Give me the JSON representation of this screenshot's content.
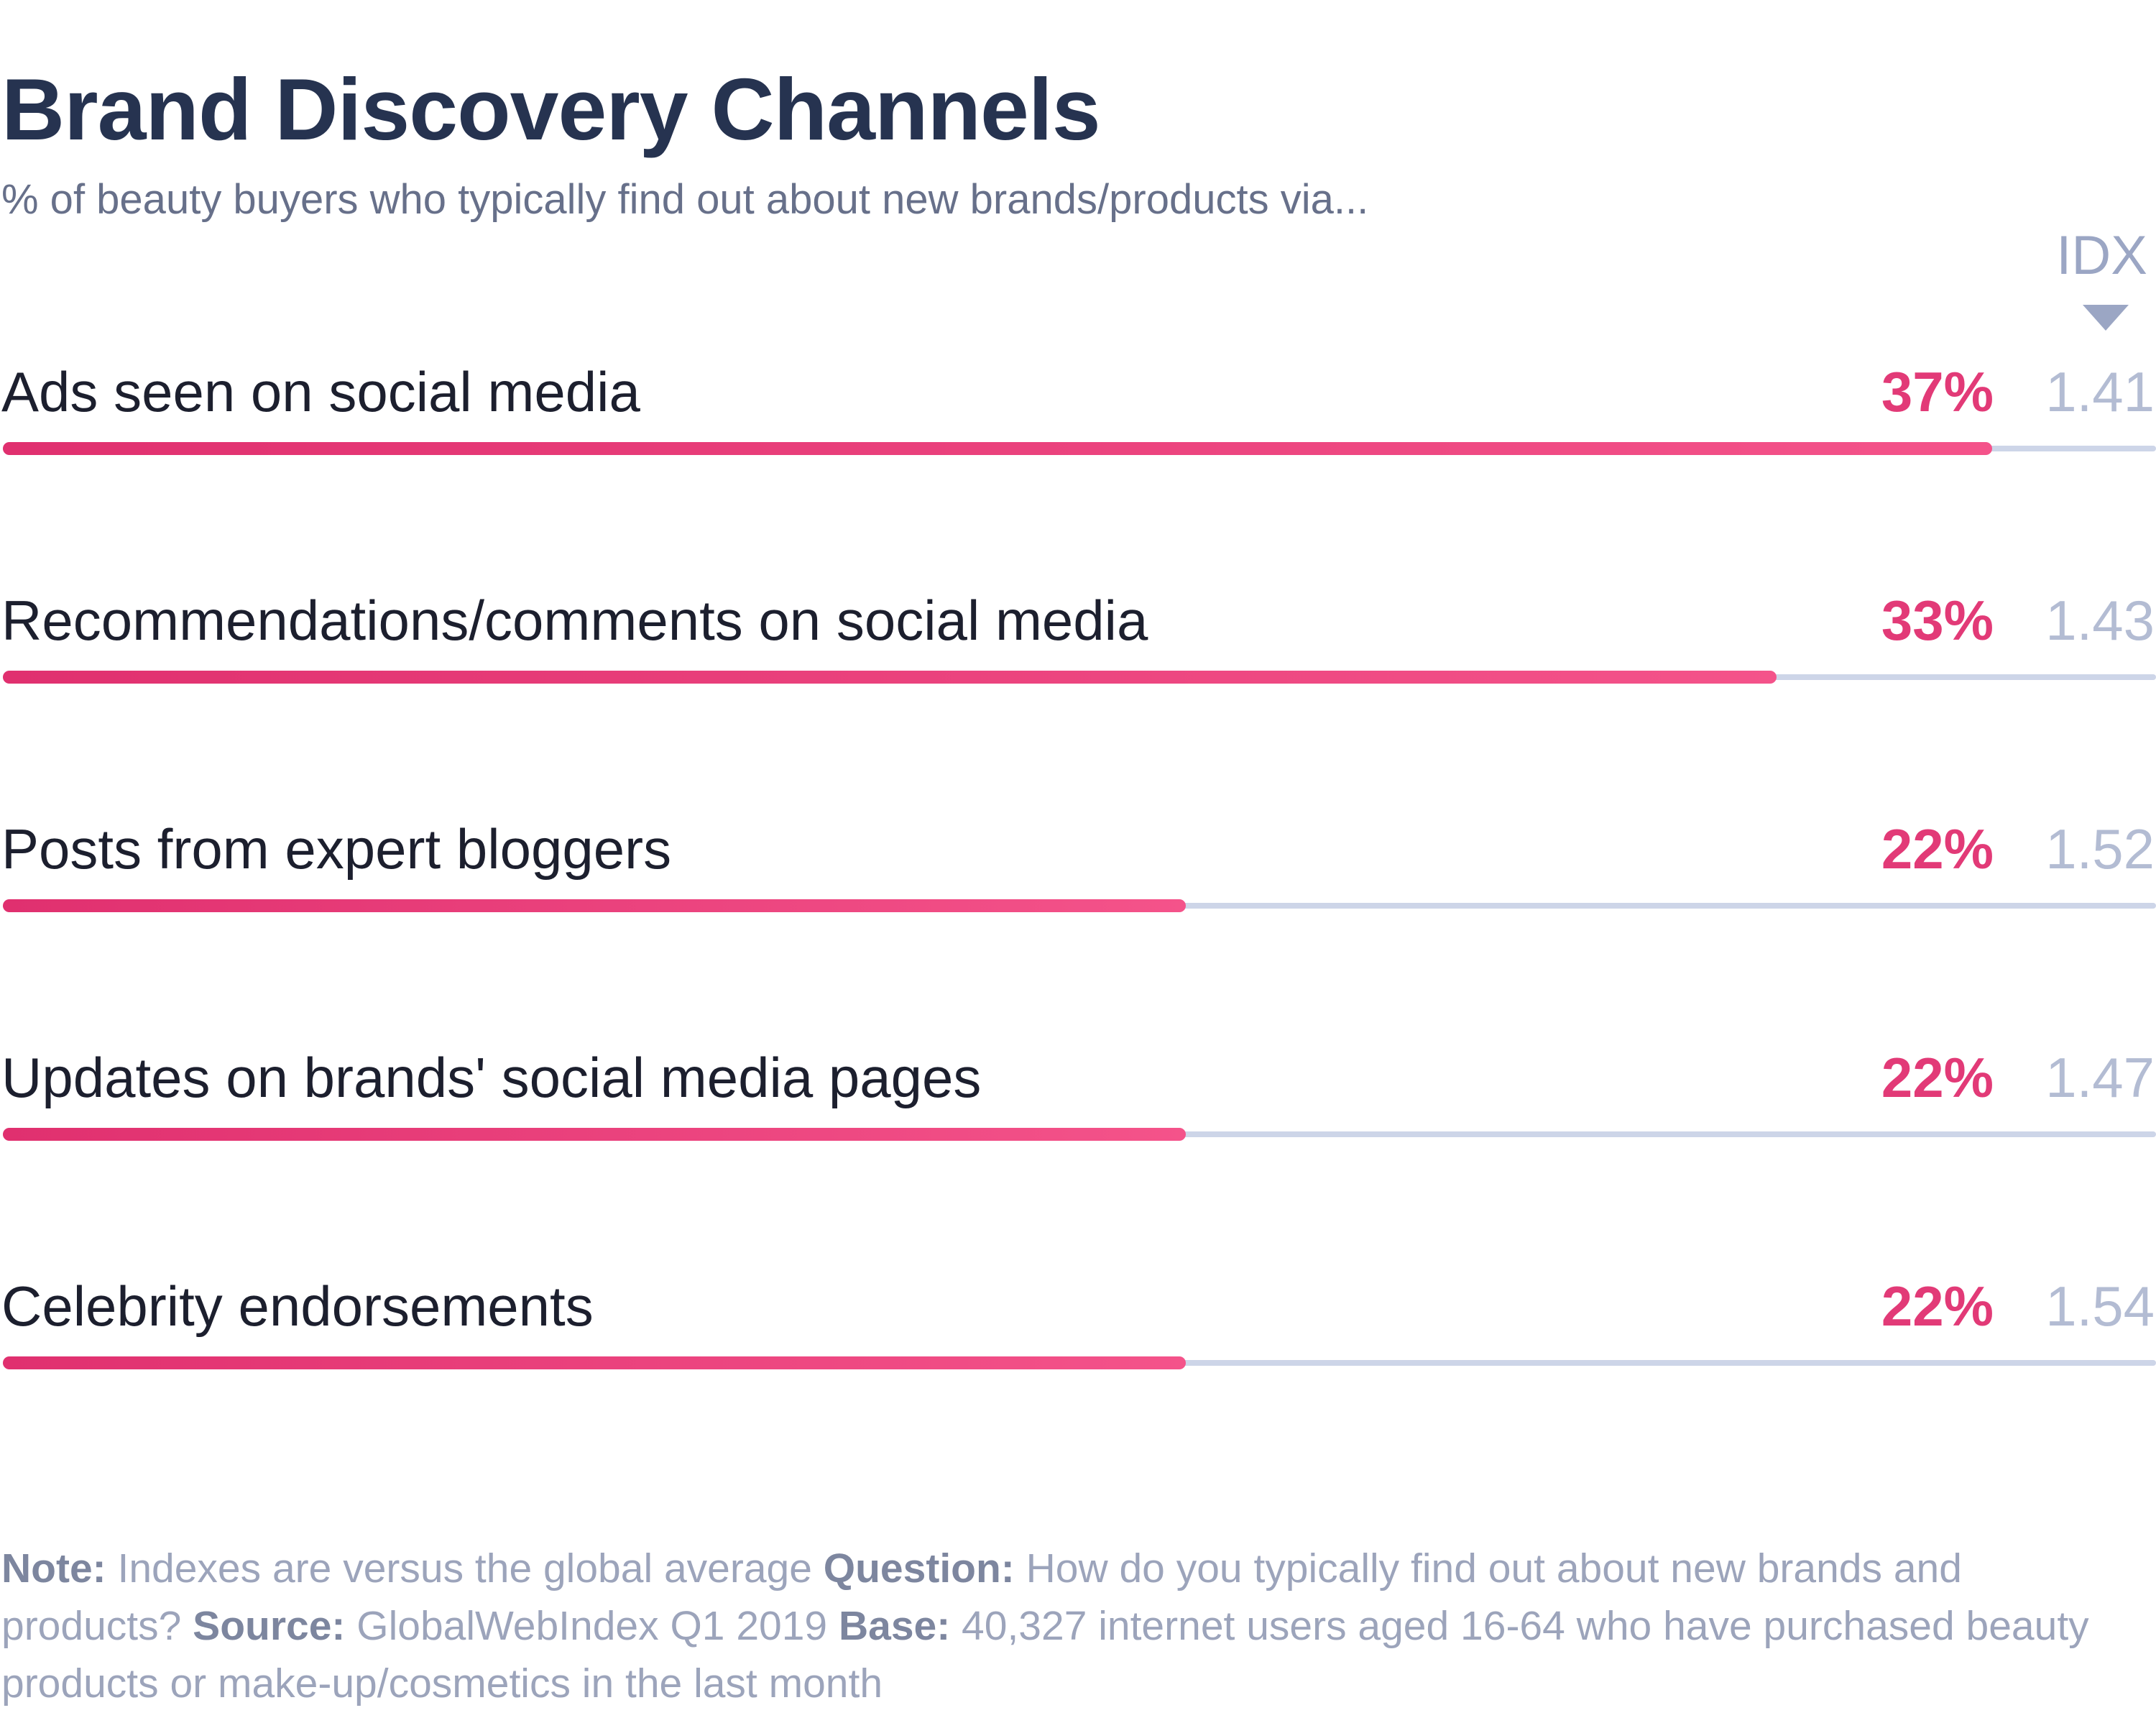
{
  "chart_data": {
    "type": "bar",
    "title": "Brand Discovery Channels",
    "subtitle": "% of beauty buyers who typically find out about new brands/products via...",
    "idx_header": "IDX",
    "categories": [
      "Ads seen on social media",
      "Recommendations/comments on social media",
      "Posts from expert bloggers",
      "Updates on brands' social media pages",
      "Celebrity endorsements"
    ],
    "series": [
      {
        "values": [
          37,
          33,
          22,
          22,
          22
        ]
      }
    ],
    "value_labels": [
      "37%",
      "33%",
      "22%",
      "22%",
      "22%"
    ],
    "index_values": [
      "1.41",
      "1.43",
      "1.52",
      "1.47",
      "1.54"
    ],
    "xlim": [
      0,
      40
    ],
    "colors": {
      "bar": "#e23a77",
      "track": "#cdd5e8",
      "index": "#b3bcd3"
    }
  },
  "footnote": {
    "note_label": "Note:",
    "note_text": " Indexes are versus the global average ",
    "question_label": "Question:",
    "question_text": " How do you typically find out about new brands and products? ",
    "source_label": "Source:",
    "source_text": " GlobalWebIndex Q1 2019 ",
    "base_label": "Base:",
    "base_text": " 40,327 internet users aged 16-64 who have purchased beauty products or make-up/cosmetics in the last month"
  }
}
